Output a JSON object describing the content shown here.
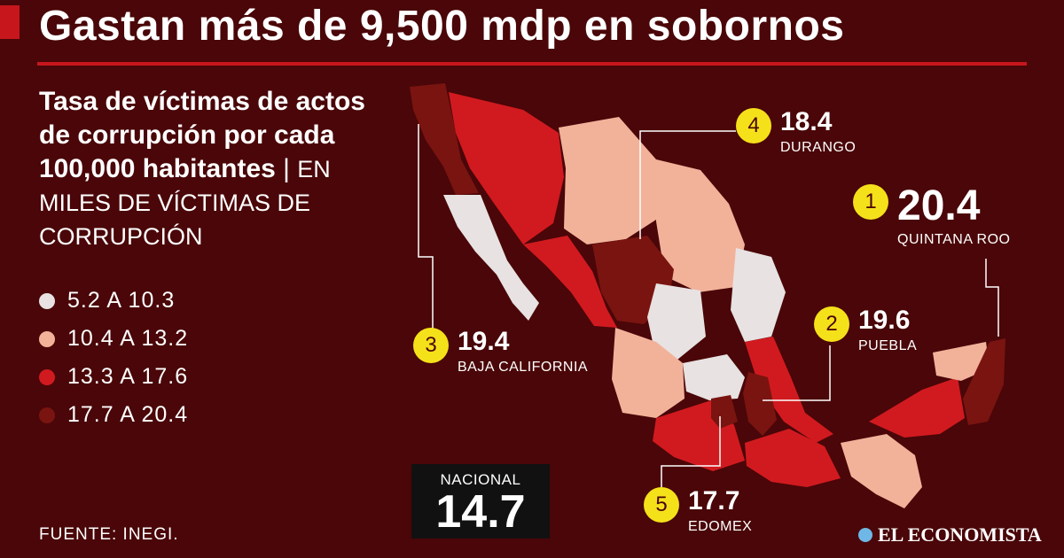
{
  "header": {
    "title": "Gastan más de 9,500 mdp en sobornos"
  },
  "subtitle": {
    "main": "Tasa de víctimas de actos de corrupción por cada 100,000 habitantes",
    "separator": " | ",
    "unit": "EN MILES DE VÍCTIMAS DE CORRUPCIÓN"
  },
  "legend": [
    {
      "label": "5.2 A 10.3",
      "color": "#e8e2e2"
    },
    {
      "label": "10.4 A 13.2",
      "color": "#f2b29a"
    },
    {
      "label": "13.3 A 17.6",
      "color": "#d11a1f"
    },
    {
      "label": "17.7 A 20.4",
      "color": "#7a1410"
    }
  ],
  "callouts": [
    {
      "rank": "1",
      "value": "20.4",
      "name": "QUINTANA ROO"
    },
    {
      "rank": "2",
      "value": "19.6",
      "name": "PUEBLA"
    },
    {
      "rank": "3",
      "value": "19.4",
      "name": "BAJA CALIFORNIA"
    },
    {
      "rank": "4",
      "value": "18.4",
      "name": "DURANGO"
    },
    {
      "rank": "5",
      "value": "17.7",
      "name": "EDOMEX"
    }
  ],
  "national": {
    "label": "NACIONAL",
    "value": "14.7"
  },
  "source": "FUENTE: INEGI.",
  "brand": "EL ECONOMISTA",
  "colors": {
    "background": "#4a0608",
    "accent": "#c8161d",
    "badge": "#f5e11a"
  }
}
